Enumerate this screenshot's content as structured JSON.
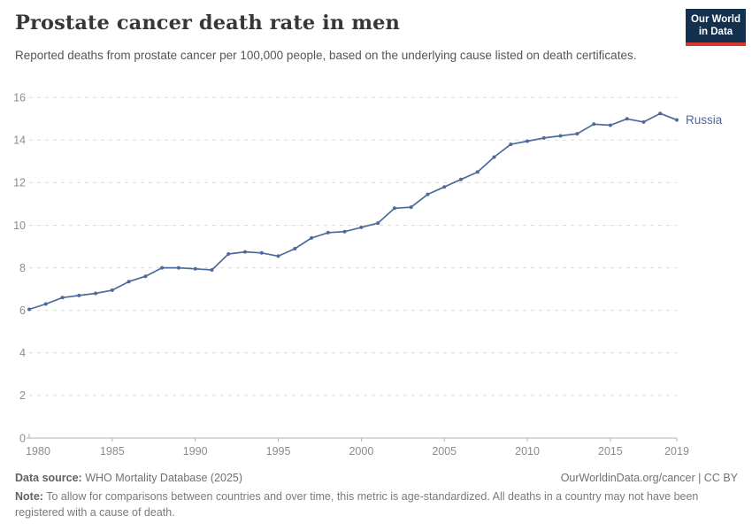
{
  "header": {
    "title": "Prostate cancer death rate in men",
    "subtitle": "Reported deaths from prostate cancer per 100,000 people, based on the underlying cause listed on death certificates.",
    "logo": {
      "line1": "Our World",
      "line2": "in Data"
    }
  },
  "chart_data": {
    "type": "line",
    "title": "Prostate cancer death rate in men",
    "xlabel": "",
    "ylabel": "",
    "x": [
      1980,
      1981,
      1982,
      1983,
      1984,
      1985,
      1986,
      1987,
      1988,
      1989,
      1990,
      1991,
      1992,
      1993,
      1994,
      1995,
      1996,
      1997,
      1998,
      1999,
      2000,
      2001,
      2002,
      2003,
      2004,
      2005,
      2006,
      2007,
      2008,
      2009,
      2010,
      2011,
      2012,
      2013,
      2014,
      2015,
      2016,
      2017,
      2018,
      2019
    ],
    "series": [
      {
        "name": "Russia",
        "values": [
          6.05,
          6.3,
          6.6,
          6.7,
          6.8,
          6.95,
          7.35,
          7.6,
          8.0,
          8.0,
          7.95,
          7.9,
          8.65,
          8.75,
          8.7,
          8.55,
          8.9,
          9.4,
          9.65,
          9.7,
          9.9,
          10.1,
          10.8,
          10.85,
          11.45,
          11.8,
          12.15,
          12.5,
          13.2,
          13.8,
          13.95,
          14.1,
          14.2,
          14.3,
          14.75,
          14.7,
          15.0,
          14.85,
          15.25,
          14.95
        ]
      }
    ],
    "x_ticks": [
      1980,
      1985,
      1990,
      1995,
      2000,
      2005,
      2010,
      2015,
      2019
    ],
    "y_ticks": [
      0,
      2,
      4,
      6,
      8,
      10,
      12,
      14,
      16
    ],
    "xlim": [
      1980,
      2019
    ],
    "ylim": [
      0,
      16.6
    ],
    "grid": "horizontal-dashed",
    "legend_position": "end-of-line-label",
    "end_label": "Russia"
  },
  "footer": {
    "source_label": "Data source:",
    "source_text": " WHO Mortality Database (2025)",
    "link_text": "OurWorldinData.org/cancer | CC BY",
    "note_label": "Note:",
    "note_text": " To allow for comparisons between countries and over time, this metric is age-standardized. All deaths in a country may not have been registered with a cause of death."
  },
  "colors": {
    "series_line": "#4c6a9c",
    "grid_line": "#dcdcdc",
    "axis_line": "#b0b0b0",
    "tick_label": "#8c8c8c",
    "logo_navy": "#13304f",
    "logo_red": "#d43830"
  }
}
